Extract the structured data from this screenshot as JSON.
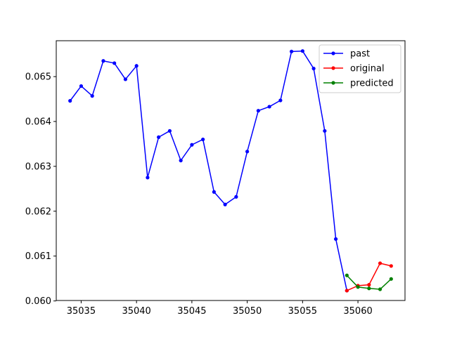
{
  "chart_data": {
    "type": "line",
    "title": "",
    "xlabel": "",
    "ylabel": "",
    "xlim": [
      35032.75,
      35064.25
    ],
    "ylim": [
      0.06001,
      0.0658
    ],
    "xticks": [
      35035,
      35040,
      35045,
      35050,
      35055,
      35060
    ],
    "yticks": [
      0.06,
      0.061,
      0.062,
      0.063,
      0.064,
      0.065
    ],
    "ytick_labels": [
      "0.060",
      "0.061",
      "0.062",
      "0.063",
      "0.064",
      "0.065"
    ],
    "grid": false,
    "legend_position": "top-right",
    "series": [
      {
        "name": "past",
        "color": "#0000ff",
        "x": [
          35034,
          35035,
          35036,
          35037,
          35038,
          35039,
          35040,
          35041,
          35042,
          35043,
          35044,
          35045,
          35046,
          35047,
          35048,
          35049,
          35050,
          35051,
          35052,
          35053,
          35054,
          35055,
          35056,
          35057,
          35058,
          35059
        ],
        "y": [
          0.06446,
          0.06479,
          0.06457,
          0.06535,
          0.0653,
          0.06494,
          0.06524,
          0.06275,
          0.06365,
          0.06379,
          0.06313,
          0.06348,
          0.0636,
          0.06243,
          0.06215,
          0.06232,
          0.06333,
          0.06424,
          0.06433,
          0.06447,
          0.06556,
          0.06557,
          0.06518,
          0.06379,
          0.06138,
          0.06023
        ]
      },
      {
        "name": "original",
        "color": "#ff0000",
        "x": [
          35059,
          35060,
          35061,
          35062,
          35063
        ],
        "y": [
          0.06023,
          0.06034,
          0.06036,
          0.06084,
          0.06078
        ]
      },
      {
        "name": "predicted",
        "color": "#008000",
        "x": [
          35059,
          35060,
          35061,
          35062,
          35063
        ],
        "y": [
          0.06057,
          0.06031,
          0.06028,
          0.06026,
          0.06049
        ]
      }
    ]
  }
}
